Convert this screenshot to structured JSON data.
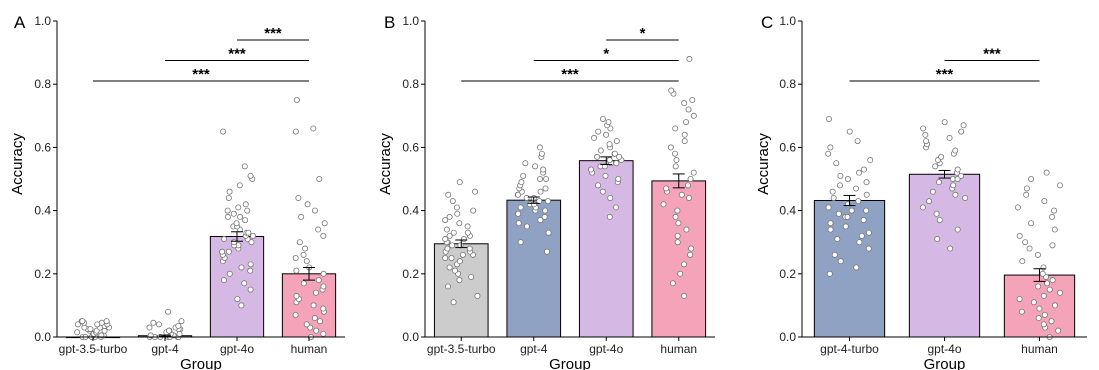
{
  "chart_data": [
    {
      "type": "bar",
      "panel_label": "A",
      "categories": [
        "gpt-3.5-turbo",
        "gpt-4",
        "gpt-4o",
        "human"
      ],
      "values": [
        0.0,
        0.004,
        0.318,
        0.2
      ],
      "errors": [
        0.0,
        0.002,
        0.015,
        0.02
      ],
      "colors": [
        "#cccccc",
        "#8fa2c4",
        "#d6b8e4",
        "#f4a3b9"
      ],
      "points": [
        [
          0.0,
          0.0,
          0.0,
          0.0,
          0.0,
          0.005,
          0.005,
          0.01,
          0.01,
          0.01,
          0.015,
          0.015,
          0.02,
          0.02,
          0.02,
          0.025,
          0.025,
          0.03,
          0.03,
          0.03,
          0.035,
          0.035,
          0.04,
          0.04,
          0.04,
          0.045,
          0.045,
          0.05,
          0.05,
          0.05
        ],
        [
          0.0,
          0.0,
          0.0,
          0.0,
          0.0,
          0.0,
          0.0,
          0.005,
          0.005,
          0.01,
          0.01,
          0.015,
          0.015,
          0.02,
          0.02,
          0.025,
          0.025,
          0.03,
          0.03,
          0.035,
          0.04,
          0.045,
          0.05,
          0.08
        ],
        [
          0.1,
          0.12,
          0.15,
          0.17,
          0.18,
          0.2,
          0.21,
          0.22,
          0.23,
          0.24,
          0.25,
          0.26,
          0.27,
          0.27,
          0.28,
          0.29,
          0.29,
          0.3,
          0.3,
          0.31,
          0.31,
          0.32,
          0.32,
          0.33,
          0.33,
          0.34,
          0.35,
          0.35,
          0.36,
          0.37,
          0.38,
          0.38,
          0.39,
          0.4,
          0.4,
          0.41,
          0.42,
          0.44,
          0.46,
          0.48,
          0.5,
          0.51,
          0.54,
          0.65
        ],
        [
          0.0,
          0.01,
          0.02,
          0.03,
          0.04,
          0.05,
          0.06,
          0.07,
          0.08,
          0.09,
          0.1,
          0.11,
          0.12,
          0.13,
          0.14,
          0.15,
          0.16,
          0.17,
          0.18,
          0.2,
          0.21,
          0.22,
          0.24,
          0.25,
          0.26,
          0.28,
          0.3,
          0.32,
          0.34,
          0.36,
          0.38,
          0.4,
          0.42,
          0.44,
          0.5,
          0.66,
          0.65,
          0.75
        ]
      ],
      "xlabel": "Group",
      "ylabel": "Accuracy",
      "ylim": [
        0,
        1.0
      ],
      "yticks": [
        "0.0",
        "0.2",
        "0.4",
        "0.6",
        "0.8",
        "1.0"
      ],
      "significance": [
        {
          "from": 2,
          "to": 3,
          "y": 0.94,
          "label": "***"
        },
        {
          "from": 1,
          "to": 3,
          "y": 0.875,
          "label": "***"
        },
        {
          "from": 0,
          "to": 3,
          "y": 0.81,
          "label": "***"
        }
      ]
    },
    {
      "type": "bar",
      "panel_label": "B",
      "categories": [
        "gpt-3.5-turbo",
        "gpt-4",
        "gpt-4o",
        "human"
      ],
      "values": [
        0.295,
        0.433,
        0.558,
        0.494
      ],
      "errors": [
        0.012,
        0.01,
        0.012,
        0.022
      ],
      "colors": [
        "#cccccc",
        "#8fa2c4",
        "#d6b8e4",
        "#f4a3b9"
      ],
      "points": [
        [
          0.11,
          0.13,
          0.16,
          0.18,
          0.19,
          0.2,
          0.21,
          0.22,
          0.23,
          0.24,
          0.25,
          0.25,
          0.26,
          0.26,
          0.27,
          0.27,
          0.28,
          0.28,
          0.29,
          0.29,
          0.3,
          0.3,
          0.31,
          0.31,
          0.32,
          0.32,
          0.33,
          0.33,
          0.34,
          0.35,
          0.36,
          0.37,
          0.38,
          0.39,
          0.4,
          0.41,
          0.43,
          0.45,
          0.46,
          0.49
        ],
        [
          0.27,
          0.3,
          0.33,
          0.35,
          0.36,
          0.37,
          0.38,
          0.39,
          0.4,
          0.4,
          0.41,
          0.41,
          0.42,
          0.42,
          0.43,
          0.43,
          0.44,
          0.44,
          0.45,
          0.45,
          0.46,
          0.46,
          0.47,
          0.47,
          0.48,
          0.49,
          0.5,
          0.5,
          0.51,
          0.52,
          0.53,
          0.54,
          0.55,
          0.57,
          0.58,
          0.6
        ],
        [
          0.38,
          0.41,
          0.44,
          0.46,
          0.48,
          0.49,
          0.5,
          0.51,
          0.52,
          0.53,
          0.54,
          0.54,
          0.55,
          0.55,
          0.56,
          0.56,
          0.57,
          0.57,
          0.58,
          0.58,
          0.59,
          0.6,
          0.61,
          0.62,
          0.63,
          0.64,
          0.65,
          0.66,
          0.67,
          0.68,
          0.69
        ],
        [
          0.13,
          0.17,
          0.2,
          0.23,
          0.26,
          0.28,
          0.3,
          0.32,
          0.34,
          0.36,
          0.38,
          0.4,
          0.42,
          0.44,
          0.45,
          0.46,
          0.47,
          0.48,
          0.5,
          0.52,
          0.54,
          0.56,
          0.58,
          0.6,
          0.62,
          0.64,
          0.66,
          0.68,
          0.7,
          0.72,
          0.74,
          0.75,
          0.77,
          0.78,
          0.88
        ]
      ],
      "xlabel": "Group",
      "ylabel": "Accuracy",
      "ylim": [
        0,
        1.0
      ],
      "yticks": [
        "0.0",
        "0.2",
        "0.4",
        "0.6",
        "0.8",
        "1.0"
      ],
      "significance": [
        {
          "from": 2,
          "to": 3,
          "y": 0.94,
          "label": "*"
        },
        {
          "from": 1,
          "to": 3,
          "y": 0.875,
          "label": "*"
        },
        {
          "from": 0,
          "to": 3,
          "y": 0.81,
          "label": "***"
        }
      ]
    },
    {
      "type": "bar",
      "panel_label": "C",
      "categories": [
        "gpt-4-turbo",
        "gpt-4o",
        "human"
      ],
      "values": [
        0.432,
        0.515,
        0.196
      ],
      "errors": [
        0.016,
        0.012,
        0.02
      ],
      "colors": [
        "#8fa2c4",
        "#d6b8e4",
        "#f4a3b9"
      ],
      "points": [
        [
          0.2,
          0.22,
          0.24,
          0.26,
          0.28,
          0.3,
          0.31,
          0.32,
          0.33,
          0.34,
          0.35,
          0.36,
          0.37,
          0.38,
          0.38,
          0.39,
          0.4,
          0.4,
          0.41,
          0.42,
          0.43,
          0.44,
          0.45,
          0.46,
          0.47,
          0.48,
          0.49,
          0.5,
          0.51,
          0.52,
          0.53,
          0.55,
          0.56,
          0.58,
          0.6,
          0.62,
          0.65,
          0.69
        ],
        [
          0.28,
          0.31,
          0.34,
          0.37,
          0.39,
          0.41,
          0.43,
          0.44,
          0.45,
          0.46,
          0.47,
          0.48,
          0.49,
          0.5,
          0.5,
          0.51,
          0.52,
          0.53,
          0.54,
          0.55,
          0.56,
          0.57,
          0.58,
          0.59,
          0.6,
          0.61,
          0.62,
          0.63,
          0.64,
          0.65,
          0.66,
          0.67,
          0.68
        ],
        [
          0.0,
          0.02,
          0.03,
          0.04,
          0.05,
          0.06,
          0.07,
          0.08,
          0.09,
          0.1,
          0.11,
          0.12,
          0.13,
          0.14,
          0.15,
          0.16,
          0.17,
          0.18,
          0.19,
          0.2,
          0.22,
          0.24,
          0.26,
          0.28,
          0.29,
          0.3,
          0.32,
          0.34,
          0.36,
          0.38,
          0.4,
          0.41,
          0.43,
          0.45,
          0.47,
          0.48,
          0.5,
          0.52
        ]
      ],
      "xlabel": "Group",
      "ylabel": "Accuracy",
      "ylim": [
        0,
        1.0
      ],
      "yticks": [
        "0.0",
        "0.2",
        "0.4",
        "0.6",
        "0.8",
        "1.0"
      ],
      "significance": [
        {
          "from": 1,
          "to": 2,
          "y": 0.875,
          "label": "***"
        },
        {
          "from": 0,
          "to": 2,
          "y": 0.81,
          "label": "***"
        }
      ]
    }
  ]
}
